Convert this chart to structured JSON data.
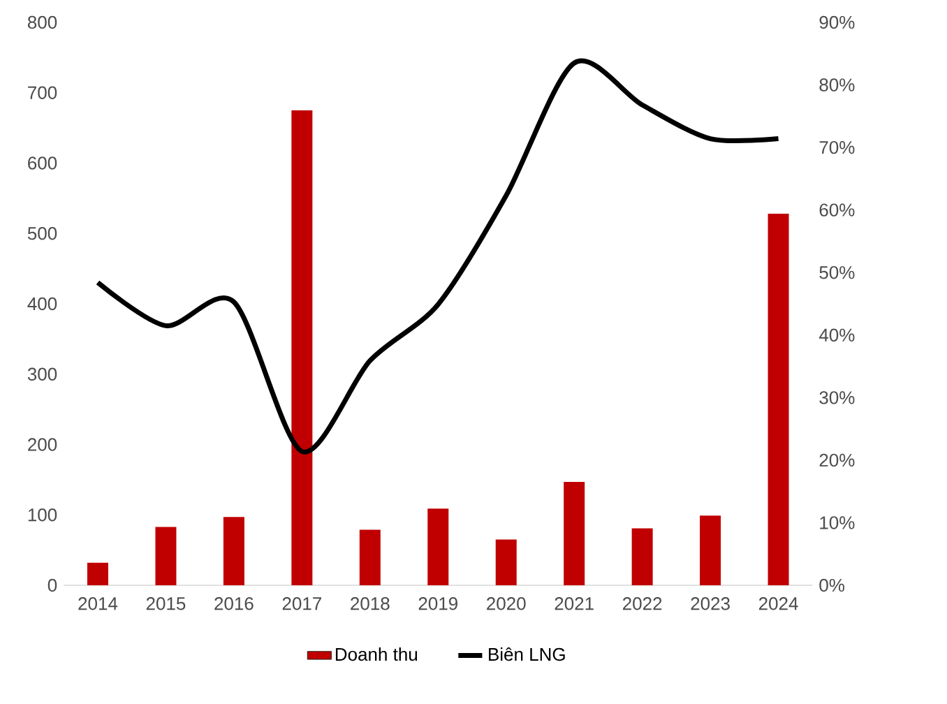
{
  "chart_data": {
    "type": "bar",
    "categories": [
      "2014",
      "2015",
      "2016",
      "2017",
      "2018",
      "2019",
      "2020",
      "2021",
      "2022",
      "2023",
      "2024"
    ],
    "series": [
      {
        "name": "Doanh thu",
        "color": "#c00000",
        "values": [
          32,
          83,
          97,
          675,
          79,
          109,
          65,
          147,
          81,
          99,
          528
        ]
      },
      {
        "name": "Biên LNG",
        "type": "line",
        "axis": "y2",
        "color": "#000000",
        "values": [
          48.4,
          41.5,
          45.3,
          21.4,
          35.9,
          44.9,
          62.3,
          83.5,
          76.8,
          71.4,
          71.4
        ]
      }
    ],
    "ylim": [
      0,
      800
    ],
    "yticks": [
      0,
      100,
      200,
      300,
      400,
      500,
      600,
      700,
      800
    ],
    "y2lim": [
      0,
      90
    ],
    "y2ticks": [
      {
        "value": 0,
        "label": "0%"
      },
      {
        "value": 10,
        "label": "10%"
      },
      {
        "value": 20,
        "label": "20%"
      },
      {
        "value": 30,
        "label": "30%"
      },
      {
        "value": 40,
        "label": "40%"
      },
      {
        "value": 50,
        "label": "50%"
      },
      {
        "value": 60,
        "label": "60%"
      },
      {
        "value": 70,
        "label": "70%"
      },
      {
        "value": 80,
        "label": "80%"
      },
      {
        "value": 90,
        "label": "90%"
      }
    ],
    "legend": "bottom"
  }
}
